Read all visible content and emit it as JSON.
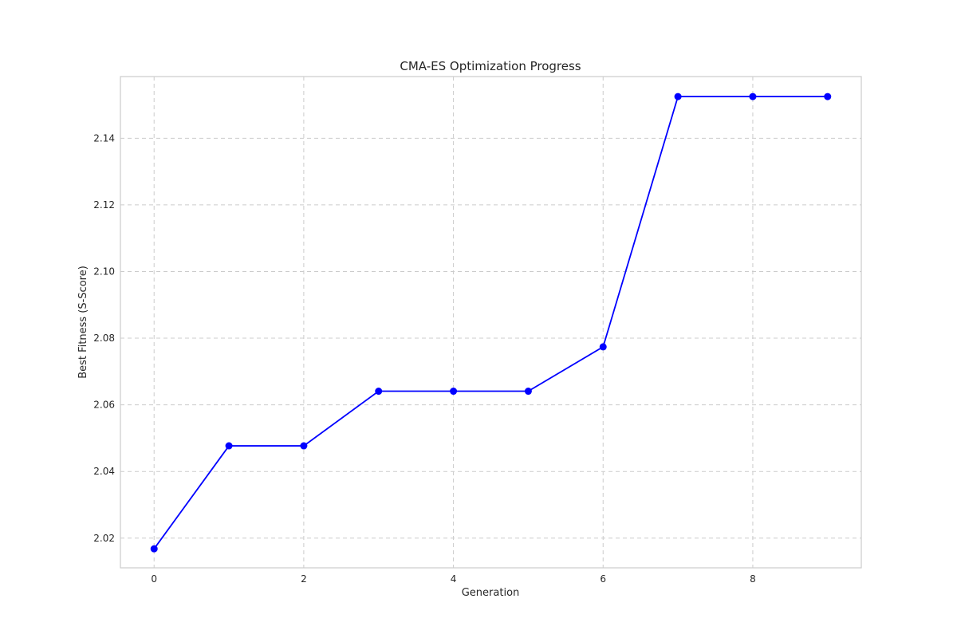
{
  "chart_data": {
    "type": "line",
    "title": "CMA-ES Optimization Progress",
    "xlabel": "Generation",
    "ylabel": "Best Fitness (S-Score)",
    "x": [
      0,
      1,
      2,
      3,
      4,
      5,
      6,
      7,
      8,
      9
    ],
    "series": [
      {
        "values": [
          2.0168,
          2.0477,
          2.0477,
          2.0641,
          2.0641,
          2.0641,
          2.0774,
          2.1525,
          2.1525,
          2.1525
        ],
        "color": "#0000ff",
        "marker": "circle"
      }
    ],
    "xlim": [
      -0.45,
      9.45
    ],
    "ylim": [
      2.0111,
      2.1585
    ],
    "xticks": [
      0,
      2,
      4,
      6,
      8
    ],
    "yticks": [
      2.02,
      2.04,
      2.06,
      2.08,
      2.1,
      2.12,
      2.14
    ],
    "xtick_labels": [
      "0",
      "2",
      "4",
      "6",
      "8"
    ],
    "ytick_labels": [
      "2.02",
      "2.04",
      "2.06",
      "2.08",
      "2.10",
      "2.12",
      "2.14"
    ],
    "grid": true,
    "legend": "none"
  }
}
